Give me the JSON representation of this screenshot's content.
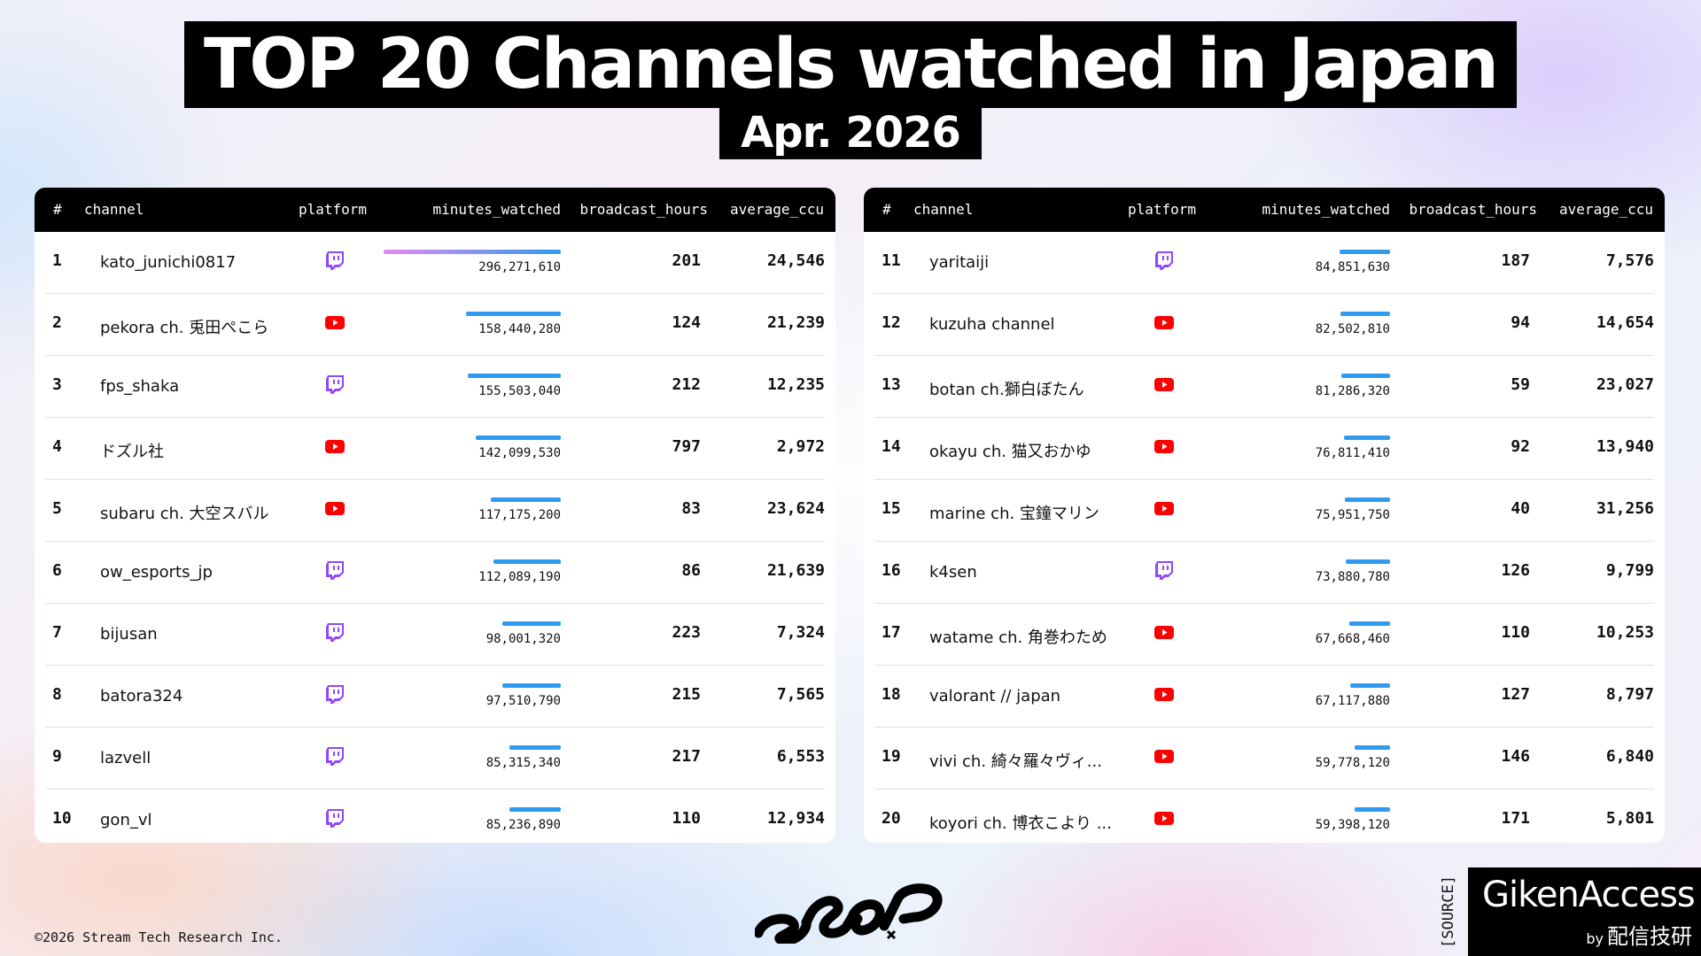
{
  "header": {
    "title": "TOP 20 Channels watched in Japan",
    "subtitle": "Apr. 2026"
  },
  "columns": {
    "rank": "#",
    "channel": "channel",
    "platform": "platform",
    "minutes": "minutes_watched",
    "hours": "broadcast_hours",
    "ccu": "average_ccu"
  },
  "colors": {
    "twitch": "#9146FF",
    "youtube": "#FF0000",
    "bar_blue": "#2E9BF0",
    "bar_top_gradient": [
      "#E58AF0",
      "#2E9BF0"
    ]
  },
  "max_minutes": 296271610,
  "left_rows": [
    {
      "rank": "1",
      "channel": "kato_junichi0817",
      "platform": "twitch",
      "minutes": "296,271,610",
      "minutes_value": 296271610,
      "hours": "201",
      "ccu": "24,546"
    },
    {
      "rank": "2",
      "channel": "pekora ch. 兎田ぺこら",
      "platform": "youtube",
      "minutes": "158,440,280",
      "minutes_value": 158440280,
      "hours": "124",
      "ccu": "21,239"
    },
    {
      "rank": "3",
      "channel": "fps_shaka",
      "platform": "twitch",
      "minutes": "155,503,040",
      "minutes_value": 155503040,
      "hours": "212",
      "ccu": "12,235"
    },
    {
      "rank": "4",
      "channel": "ドズル社",
      "platform": "youtube",
      "minutes": "142,099,530",
      "minutes_value": 142099530,
      "hours": "797",
      "ccu": "2,972"
    },
    {
      "rank": "5",
      "channel": "subaru ch. 大空スバル",
      "platform": "youtube",
      "minutes": "117,175,200",
      "minutes_value": 117175200,
      "hours": "83",
      "ccu": "23,624"
    },
    {
      "rank": "6",
      "channel": "ow_esports_jp",
      "platform": "twitch",
      "minutes": "112,089,190",
      "minutes_value": 112089190,
      "hours": "86",
      "ccu": "21,639"
    },
    {
      "rank": "7",
      "channel": "bijusan",
      "platform": "twitch",
      "minutes": "98,001,320",
      "minutes_value": 98001320,
      "hours": "223",
      "ccu": "7,324"
    },
    {
      "rank": "8",
      "channel": "batora324",
      "platform": "twitch",
      "minutes": "97,510,790",
      "minutes_value": 97510790,
      "hours": "215",
      "ccu": "7,565"
    },
    {
      "rank": "9",
      "channel": "lazvell",
      "platform": "twitch",
      "minutes": "85,315,340",
      "minutes_value": 85315340,
      "hours": "217",
      "ccu": "6,553"
    },
    {
      "rank": "10",
      "channel": "gon_vl",
      "platform": "twitch",
      "minutes": "85,236,890",
      "minutes_value": 85236890,
      "hours": "110",
      "ccu": "12,934"
    }
  ],
  "right_rows": [
    {
      "rank": "11",
      "channel": "yaritaiji",
      "platform": "twitch",
      "minutes": "84,851,630",
      "minutes_value": 84851630,
      "hours": "187",
      "ccu": "7,576"
    },
    {
      "rank": "12",
      "channel": "kuzuha channel",
      "platform": "youtube",
      "minutes": "82,502,810",
      "minutes_value": 82502810,
      "hours": "94",
      "ccu": "14,654"
    },
    {
      "rank": "13",
      "channel": "botan ch.獅白ぼたん",
      "platform": "youtube",
      "minutes": "81,286,320",
      "minutes_value": 81286320,
      "hours": "59",
      "ccu": "23,027"
    },
    {
      "rank": "14",
      "channel": "okayu ch. 猫又おかゆ",
      "platform": "youtube",
      "minutes": "76,811,410",
      "minutes_value": 76811410,
      "hours": "92",
      "ccu": "13,940"
    },
    {
      "rank": "15",
      "channel": "marine ch. 宝鐘マリン",
      "platform": "youtube",
      "minutes": "75,951,750",
      "minutes_value": 75951750,
      "hours": "40",
      "ccu": "31,256"
    },
    {
      "rank": "16",
      "channel": "k4sen",
      "platform": "twitch",
      "minutes": "73,880,780",
      "minutes_value": 73880780,
      "hours": "126",
      "ccu": "9,799"
    },
    {
      "rank": "17",
      "channel": "watame ch. 角巻わため",
      "platform": "youtube",
      "minutes": "67,668,460",
      "minutes_value": 67668460,
      "hours": "110",
      "ccu": "10,253"
    },
    {
      "rank": "18",
      "channel": "valorant // japan",
      "platform": "youtube",
      "minutes": "67,117,880",
      "minutes_value": 67117880,
      "hours": "127",
      "ccu": "8,797"
    },
    {
      "rank": "19",
      "channel": "vivi ch. 綺々羅々ヴィ...",
      "platform": "youtube",
      "minutes": "59,778,120",
      "minutes_value": 59778120,
      "hours": "146",
      "ccu": "6,840"
    },
    {
      "rank": "20",
      "channel": "koyori ch. 博衣こより ...",
      "platform": "youtube",
      "minutes": "59,398,120",
      "minutes_value": 59398120,
      "hours": "171",
      "ccu": "5,801"
    }
  ],
  "footer": {
    "copyright": "©2026 Stream Tech Research Inc.",
    "source_label": "[SOURCE]",
    "source_name": "GikenAccess",
    "source_by": "by",
    "source_org": "配信技研",
    "scop_logo": "SCOP"
  }
}
